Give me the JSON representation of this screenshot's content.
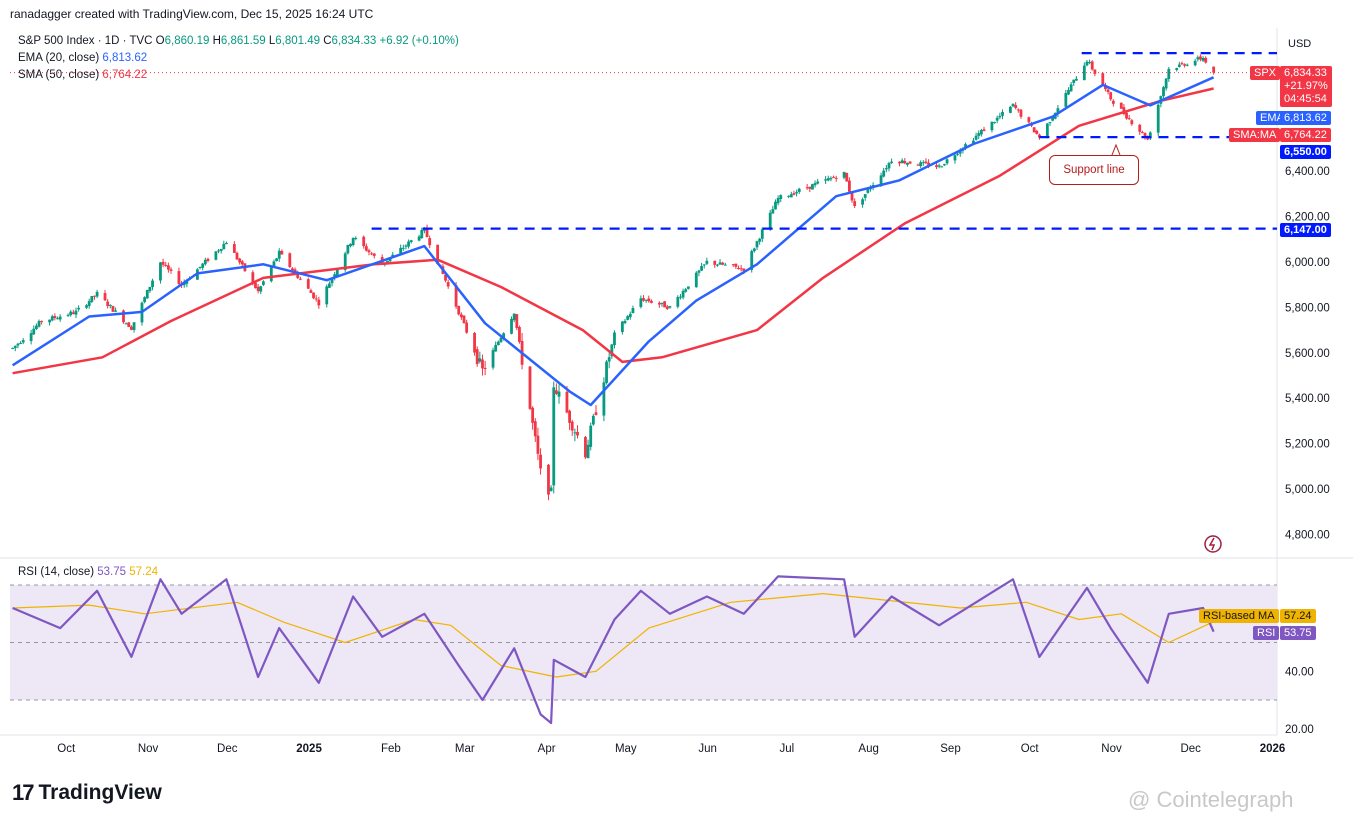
{
  "header": {
    "credit": "ranadagger created with TradingView.com, Dec 15, 2025 16:24 UTC"
  },
  "legend": {
    "symbol": "S&P 500 Index · 1D · TVC",
    "open_label": "O",
    "open": "6,860.19",
    "high_label": "H",
    "high": "6,861.59",
    "low_label": "L",
    "low": "6,801.49",
    "close_label": "C",
    "close": "6,834.33",
    "change": "+6.92 (+0.10%)",
    "ema_label": "EMA (20, close)",
    "ema_value": "6,813.62",
    "sma_label": "SMA (50, close)",
    "sma_value": "6,764.22"
  },
  "rsi_legend": {
    "label": "RSI (14, close)",
    "rsi_value": "53.75",
    "ma_value": "57.24"
  },
  "currency": "USD",
  "tags": {
    "spx_name": "SPX",
    "spx_price": "6,834.33",
    "spx_change": "+21.97%",
    "spx_countdown": "04:45:54",
    "ema_name": "EMA",
    "ema_price": "6,813.62",
    "sma_name": "SMA:MA",
    "sma_price": "6,764.22",
    "support_price": "6,550.00",
    "resistance_price": "6,147.00",
    "rsi_ma_name": "RSI-based MA",
    "rsi_ma_value": "57.24",
    "rsi_name": "RSI",
    "rsi_value": "53.75"
  },
  "annotation": {
    "text": "Support line"
  },
  "branding": {
    "tv": "TradingView",
    "source": "@ Cointelegraph"
  },
  "colors": {
    "up": "#089981",
    "down": "#f23645",
    "ema": "#2962ff",
    "sma": "#f23645",
    "rsi": "#7e57c2",
    "rsi_ma": "#f0b400",
    "level": "#0019ff",
    "rsi_band": "#ede7f6"
  },
  "chart_data": [
    {
      "type": "candlestick",
      "title": "S&P 500 Index · 1D · TVC",
      "y_axis_ticks": [
        "4,800.00",
        "5,000.00",
        "5,200.00",
        "5,400.00",
        "5,600.00",
        "5,800.00",
        "6,000.00",
        "6,200.00",
        "6,400.00"
      ],
      "x_axis_ticks": [
        "Oct",
        "Nov",
        "Dec",
        "2025",
        "Feb",
        "Mar",
        "Apr",
        "May",
        "Jun",
        "Jul",
        "Aug",
        "Sep",
        "Oct",
        "Nov",
        "Dec",
        "2026"
      ],
      "ylim": [
        4750,
        6960
      ],
      "xlim": [
        "2024-09-15",
        "2026-01-08"
      ],
      "price_path": [
        [
          "2024-09-16",
          5620
        ],
        [
          "2024-09-27",
          5740
        ],
        [
          "2024-10-10",
          5780
        ],
        [
          "2024-10-18",
          5860
        ],
        [
          "2024-10-31",
          5710
        ],
        [
          "2024-11-11",
          6000
        ],
        [
          "2024-11-19",
          5900
        ],
        [
          "2024-12-06",
          6090
        ],
        [
          "2024-12-18",
          5870
        ],
        [
          "2024-12-26",
          6040
        ],
        [
          "2025-01-10",
          5820
        ],
        [
          "2025-01-23",
          6110
        ],
        [
          "2025-02-03",
          5990
        ],
        [
          "2025-02-19",
          6140
        ],
        [
          "2025-03-04",
          5780
        ],
        [
          "2025-03-13",
          5520
        ],
        [
          "2025-03-25",
          5780
        ],
        [
          "2025-04-04",
          5070
        ],
        [
          "2025-04-08",
          4980
        ],
        [
          "2025-04-09",
          5460
        ],
        [
          "2025-04-21",
          5160
        ],
        [
          "2025-05-02",
          5680
        ],
        [
          "2025-05-12",
          5840
        ],
        [
          "2025-05-23",
          5800
        ],
        [
          "2025-06-06",
          6000
        ],
        [
          "2025-06-20",
          5970
        ],
        [
          "2025-07-03",
          6280
        ],
        [
          "2025-07-28",
          6390
        ],
        [
          "2025-08-01",
          6240
        ],
        [
          "2025-08-15",
          6450
        ],
        [
          "2025-09-02",
          6420
        ],
        [
          "2025-09-30",
          6690
        ],
        [
          "2025-10-10",
          6550
        ],
        [
          "2025-10-28",
          6890
        ],
        [
          "2025-11-06",
          6720
        ],
        [
          "2025-11-20",
          6540
        ],
        [
          "2025-11-28",
          6850
        ],
        [
          "2025-12-11",
          6900
        ],
        [
          "2025-12-15",
          6834.33
        ]
      ],
      "ema20_path": [
        [
          "2024-09-16",
          5545
        ],
        [
          "2024-10-15",
          5760
        ],
        [
          "2024-11-04",
          5780
        ],
        [
          "2024-11-25",
          5950
        ],
        [
          "2024-12-20",
          5990
        ],
        [
          "2025-01-13",
          5920
        ],
        [
          "2025-02-19",
          6070
        ],
        [
          "2025-03-14",
          5730
        ],
        [
          "2025-04-15",
          5430
        ],
        [
          "2025-04-23",
          5370
        ],
        [
          "2025-05-15",
          5650
        ],
        [
          "2025-06-02",
          5830
        ],
        [
          "2025-06-25",
          5990
        ],
        [
          "2025-07-25",
          6290
        ],
        [
          "2025-08-18",
          6360
        ],
        [
          "2025-09-15",
          6520
        ],
        [
          "2025-10-15",
          6640
        ],
        [
          "2025-11-03",
          6780
        ],
        [
          "2025-11-21",
          6690
        ],
        [
          "2025-12-15",
          6813.62
        ]
      ],
      "sma50_path": [
        [
          "2024-09-16",
          5510
        ],
        [
          "2024-10-20",
          5580
        ],
        [
          "2024-11-15",
          5740
        ],
        [
          "2024-12-20",
          5930
        ],
        [
          "2025-01-31",
          5990
        ],
        [
          "2025-02-24",
          6010
        ],
        [
          "2025-03-20",
          5890
        ],
        [
          "2025-04-20",
          5700
        ],
        [
          "2025-05-05",
          5560
        ],
        [
          "2025-05-20",
          5580
        ],
        [
          "2025-06-25",
          5700
        ],
        [
          "2025-07-20",
          5930
        ],
        [
          "2025-08-20",
          6170
        ],
        [
          "2025-09-25",
          6380
        ],
        [
          "2025-10-25",
          6600
        ],
        [
          "2025-11-25",
          6710
        ],
        [
          "2025-12-15",
          6764.22
        ]
      ],
      "levels": [
        {
          "name": "Support line",
          "value": 6550,
          "from": "2025-10-10",
          "to": "2025-12-15"
        },
        {
          "value": 6147,
          "from": "2025-01-30",
          "to": "2025-12-15"
        },
        {
          "value": 6920,
          "from": "2025-10-26",
          "to": "2025-12-15"
        }
      ],
      "last": {
        "open": 6860.19,
        "high": 6861.59,
        "low": 6801.49,
        "close": 6834.33
      }
    },
    {
      "type": "line",
      "title": "RSI (14, close)",
      "y_axis_ticks": [
        "20.00",
        "40.00"
      ],
      "ylim": [
        18,
        82
      ],
      "bands": [
        70,
        30
      ],
      "rsi_path": [
        [
          "2024-09-16",
          62
        ],
        [
          "2024-10-04",
          55
        ],
        [
          "2024-10-18",
          68
        ],
        [
          "2024-10-31",
          45
        ],
        [
          "2024-11-11",
          72
        ],
        [
          "2024-11-19",
          60
        ],
        [
          "2024-12-06",
          72
        ],
        [
          "2024-12-18",
          38
        ],
        [
          "2024-12-26",
          55
        ],
        [
          "2025-01-10",
          36
        ],
        [
          "2025-01-23",
          66
        ],
        [
          "2025-02-03",
          52
        ],
        [
          "2025-02-19",
          60
        ],
        [
          "2025-03-04",
          42
        ],
        [
          "2025-03-13",
          30
        ],
        [
          "2025-03-25",
          48
        ],
        [
          "2025-04-04",
          25
        ],
        [
          "2025-04-08",
          22
        ],
        [
          "2025-04-09",
          44
        ],
        [
          "2025-04-21",
          38
        ],
        [
          "2025-05-02",
          58
        ],
        [
          "2025-05-12",
          68
        ],
        [
          "2025-05-23",
          60
        ],
        [
          "2025-06-06",
          66
        ],
        [
          "2025-06-20",
          60
        ],
        [
          "2025-07-03",
          73
        ],
        [
          "2025-07-28",
          72
        ],
        [
          "2025-08-01",
          52
        ],
        [
          "2025-08-15",
          66
        ],
        [
          "2025-09-02",
          56
        ],
        [
          "2025-09-30",
          72
        ],
        [
          "2025-10-10",
          45
        ],
        [
          "2025-10-28",
          69
        ],
        [
          "2025-11-06",
          55
        ],
        [
          "2025-11-20",
          36
        ],
        [
          "2025-11-28",
          60
        ],
        [
          "2025-12-11",
          62
        ],
        [
          "2025-12-15",
          53.75
        ]
      ],
      "rsi_ma_path": [
        [
          "2024-09-16",
          62
        ],
        [
          "2024-10-15",
          63
        ],
        [
          "2024-11-05",
          60
        ],
        [
          "2024-12-10",
          64
        ],
        [
          "2024-12-28",
          57
        ],
        [
          "2025-01-20",
          50
        ],
        [
          "2025-02-15",
          58
        ],
        [
          "2025-03-01",
          56
        ],
        [
          "2025-03-20",
          42
        ],
        [
          "2025-04-10",
          38
        ],
        [
          "2025-04-25",
          40
        ],
        [
          "2025-05-15",
          55
        ],
        [
          "2025-06-15",
          64
        ],
        [
          "2025-07-20",
          67
        ],
        [
          "2025-08-10",
          65
        ],
        [
          "2025-09-10",
          62
        ],
        [
          "2025-10-05",
          64
        ],
        [
          "2025-10-25",
          58
        ],
        [
          "2025-11-10",
          60
        ],
        [
          "2025-11-28",
          50
        ],
        [
          "2025-12-15",
          57.24
        ]
      ]
    }
  ]
}
